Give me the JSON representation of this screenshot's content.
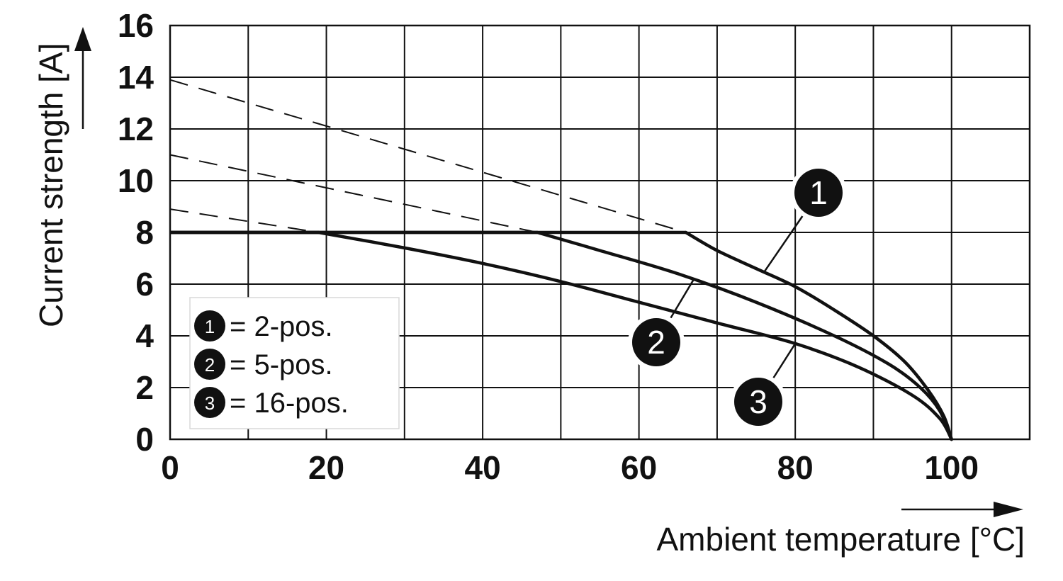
{
  "chart_data": {
    "type": "line",
    "title": "",
    "xlabel": "Ambient temperature [°C]",
    "ylabel": "Current strength [A]",
    "xlim": [
      0,
      110
    ],
    "ylim": [
      0,
      16
    ],
    "x_ticks": [
      0,
      20,
      40,
      60,
      80,
      100
    ],
    "y_ticks": [
      0,
      2,
      4,
      6,
      8,
      10,
      12,
      14,
      16
    ],
    "grid": true,
    "grid_x_step": 10,
    "grid_y_step": 2,
    "legend_position": "bottom-left",
    "current_limit": 8,
    "series": [
      {
        "name": "2-pos.",
        "label": "1",
        "points": [
          [
            0,
            8
          ],
          [
            66,
            8
          ],
          [
            70,
            7.3
          ],
          [
            75,
            6.6
          ],
          [
            80,
            5.9
          ],
          [
            85,
            5.0
          ],
          [
            90,
            4.0
          ],
          [
            94,
            3.0
          ],
          [
            97,
            1.9
          ],
          [
            99,
            0.9
          ],
          [
            100,
            0
          ]
        ],
        "extrapolated": [
          [
            0,
            13.9
          ],
          [
            66,
            8
          ]
        ]
      },
      {
        "name": "5-pos.",
        "label": "2",
        "points": [
          [
            0,
            8
          ],
          [
            47,
            8
          ],
          [
            55,
            7.3
          ],
          [
            65,
            6.4
          ],
          [
            75,
            5.3
          ],
          [
            85,
            4.0
          ],
          [
            92,
            2.9
          ],
          [
            96,
            2.0
          ],
          [
            98.5,
            1.1
          ],
          [
            100,
            0
          ]
        ],
        "extrapolated": [
          [
            0,
            11.0
          ],
          [
            47,
            8
          ]
        ]
      },
      {
        "name": "16-pos.",
        "label": "3",
        "points": [
          [
            0,
            8
          ],
          [
            19,
            8
          ],
          [
            30,
            7.4
          ],
          [
            40,
            6.8
          ],
          [
            50,
            6.1
          ],
          [
            60,
            5.3
          ],
          [
            70,
            4.5
          ],
          [
            80,
            3.7
          ],
          [
            88,
            2.8
          ],
          [
            95,
            1.7
          ],
          [
            98.5,
            0.8
          ],
          [
            100,
            0
          ]
        ],
        "extrapolated": [
          [
            0,
            8.9
          ],
          [
            19,
            8
          ]
        ]
      }
    ],
    "callouts": [
      {
        "label": "1",
        "series": 0,
        "at_x": 76
      },
      {
        "label": "2",
        "series": 1,
        "at_x": 67
      },
      {
        "label": "3",
        "series": 2,
        "at_x": 80
      }
    ],
    "legend": [
      {
        "label": "1",
        "text": "= 2-pos."
      },
      {
        "label": "2",
        "text": "= 5-pos."
      },
      {
        "label": "3",
        "text": "= 16-pos."
      }
    ]
  }
}
